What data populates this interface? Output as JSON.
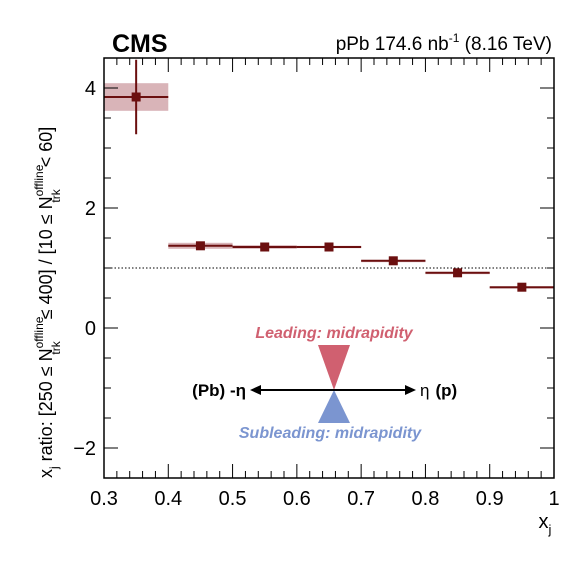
{
  "chart_data": {
    "type": "scatter",
    "experiment": "CMS",
    "header_prefix": "pPb 174.6 nb",
    "header_exp": "-1",
    "header_suffix": " (8.16 TeV)",
    "xlabel": "x",
    "xlabel_sub": "j",
    "ylabel_parts": {
      "p1": "x",
      "p1_sub": "j",
      "p2": " ratio: [250 ≤ N",
      "p3_sup": "offline",
      "p3_sub": "trk",
      "p4": " ≤ 400] / [10 ≤ N",
      "p5_sup": "offline",
      "p5_sub": "trk",
      "p6": " < 60]"
    },
    "xlim": [
      0.3,
      1.0
    ],
    "ylim": [
      -2.5,
      4.5
    ],
    "x_ticks": [
      0.3,
      0.4,
      0.5,
      0.6,
      0.7,
      0.8,
      0.9,
      1.0
    ],
    "x_tick_labels": [
      "0.3",
      "0.4",
      "0.5",
      "0.6",
      "0.7",
      "0.8",
      "0.9",
      "1"
    ],
    "y_ticks": [
      -2,
      0,
      2,
      4
    ],
    "y_tick_labels": [
      "−2",
      "0",
      "2",
      "4"
    ],
    "reference_line": 1.0,
    "series": [
      {
        "color": "#6b0f0f",
        "sys_color": "#d9b4b8",
        "points": [
          {
            "x": 0.35,
            "xlo": 0.3,
            "xhi": 0.4,
            "y": 3.85,
            "stat_lo": 3.23,
            "stat_hi": 4.47,
            "sys_lo": 3.62,
            "sys_hi": 4.08
          },
          {
            "x": 0.45,
            "xlo": 0.4,
            "xhi": 0.5,
            "y": 1.37,
            "stat_lo": 1.31,
            "stat_hi": 1.43,
            "sys_lo": 1.32,
            "sys_hi": 1.42
          },
          {
            "x": 0.55,
            "xlo": 0.5,
            "xhi": 0.6,
            "y": 1.35,
            "stat_lo": 1.32,
            "stat_hi": 1.38,
            "sys_lo": 1.32,
            "sys_hi": 1.38
          },
          {
            "x": 0.65,
            "xlo": 0.6,
            "xhi": 0.7,
            "y": 1.35,
            "stat_lo": 1.32,
            "stat_hi": 1.38,
            "sys_lo": 1.33,
            "sys_hi": 1.37
          },
          {
            "x": 0.75,
            "xlo": 0.7,
            "xhi": 0.8,
            "y": 1.12,
            "stat_lo": 1.09,
            "stat_hi": 1.15,
            "sys_lo": 1.11,
            "sys_hi": 1.13
          },
          {
            "x": 0.85,
            "xlo": 0.8,
            "xhi": 0.9,
            "y": 0.92,
            "stat_lo": 0.89,
            "stat_hi": 0.95,
            "sys_lo": 0.91,
            "sys_hi": 0.93
          },
          {
            "x": 0.95,
            "xlo": 0.9,
            "xhi": 1.0,
            "y": 0.68,
            "stat_lo": 0.66,
            "stat_hi": 0.7,
            "sys_lo": 0.67,
            "sys_hi": 0.69
          }
        ]
      }
    ],
    "inset": {
      "leading_label": "Leading: midrapidity",
      "subleading_label": "Subleading: midrapidity",
      "left_label": "(Pb) -η",
      "right_label_eta": "η",
      "right_label_p": "(p)",
      "leading_color": "#d06070",
      "subleading_color": "#7b95d0"
    }
  }
}
